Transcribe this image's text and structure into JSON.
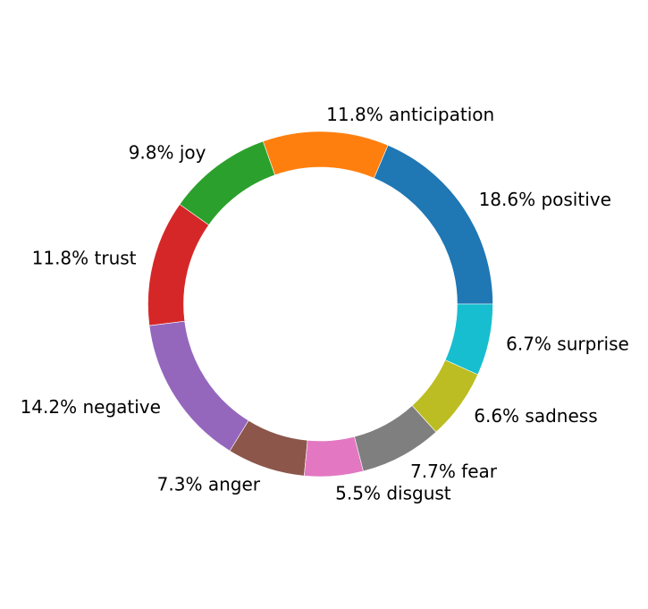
{
  "chart_data": {
    "type": "pie",
    "style": "donut",
    "start_angle_deg": 0,
    "direction": "counterclockwise",
    "slices": [
      {
        "label": "positive",
        "value": 18.6,
        "text": "18.6% positive",
        "color": "#1f77b4"
      },
      {
        "label": "anticipation",
        "value": 11.8,
        "text": "11.8% anticipation",
        "color": "#ff7f0e"
      },
      {
        "label": "joy",
        "value": 9.8,
        "text": "9.8% joy",
        "color": "#2ca02c"
      },
      {
        "label": "trust",
        "value": 11.8,
        "text": "11.8% trust",
        "color": "#d62728"
      },
      {
        "label": "negative",
        "value": 14.2,
        "text": "14.2% negative",
        "color": "#9467bd"
      },
      {
        "label": "anger",
        "value": 7.3,
        "text": "7.3% anger",
        "color": "#8c564b"
      },
      {
        "label": "disgust",
        "value": 5.5,
        "text": "5.5% disgust",
        "color": "#e377c2"
      },
      {
        "label": "fear",
        "value": 7.7,
        "text": "7.7% fear",
        "color": "#7f7f7f"
      },
      {
        "label": "sadness",
        "value": 6.6,
        "text": "6.6% sadness",
        "color": "#bcbd22"
      },
      {
        "label": "surprise",
        "value": 6.7,
        "text": "6.7% surprise",
        "color": "#17becf"
      }
    ],
    "title": "",
    "legend": "none"
  }
}
